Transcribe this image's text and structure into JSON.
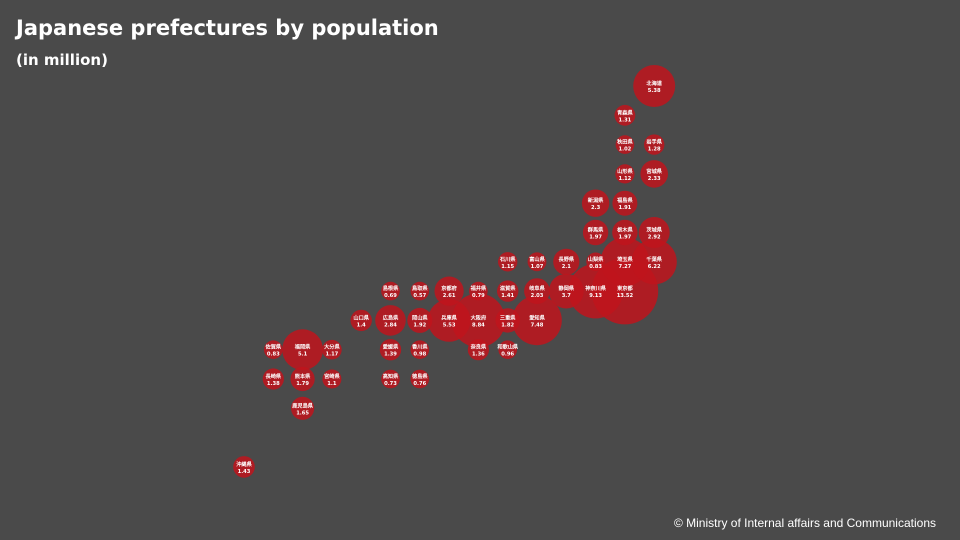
{
  "header": {
    "title": "Japanese prefectures by population",
    "subtitle": "(in million)"
  },
  "footer": {
    "credit": "© Ministry of Internal affairs and Communications"
  },
  "colors": {
    "background": "#4a4a4a",
    "bubble": "#c0141c",
    "text": "#ffffff"
  },
  "chart_data": {
    "type": "scatter",
    "encoding": "tile-grid bubble map; bubble area proportional to population",
    "unit": "million",
    "points": [
      {
        "name": "北海道",
        "value": 5.38,
        "col": 14,
        "row": 0
      },
      {
        "name": "青森県",
        "value": 1.31,
        "col": 13,
        "row": 1
      },
      {
        "name": "秋田県",
        "value": 1.02,
        "col": 13,
        "row": 2
      },
      {
        "name": "岩手県",
        "value": 1.28,
        "col": 14,
        "row": 2
      },
      {
        "name": "山形県",
        "value": 1.12,
        "col": 13,
        "row": 3
      },
      {
        "name": "宮城県",
        "value": 2.33,
        "col": 14,
        "row": 3
      },
      {
        "name": "新潟県",
        "value": 2.3,
        "col": 12,
        "row": 4
      },
      {
        "name": "福島県",
        "value": 1.91,
        "col": 13,
        "row": 4
      },
      {
        "name": "群馬県",
        "value": 1.97,
        "col": 12,
        "row": 5
      },
      {
        "name": "栃木県",
        "value": 1.97,
        "col": 13,
        "row": 5
      },
      {
        "name": "茨城県",
        "value": 2.92,
        "col": 14,
        "row": 5
      },
      {
        "name": "石川県",
        "value": 1.15,
        "col": 9,
        "row": 6
      },
      {
        "name": "富山県",
        "value": 1.07,
        "col": 10,
        "row": 6
      },
      {
        "name": "長野県",
        "value": 2.1,
        "col": 11,
        "row": 6
      },
      {
        "name": "山梨県",
        "value": 0.83,
        "col": 12,
        "row": 6
      },
      {
        "name": "埼玉県",
        "value": 7.27,
        "col": 13,
        "row": 6
      },
      {
        "name": "千葉県",
        "value": 6.22,
        "col": 14,
        "row": 6
      },
      {
        "name": "島根県",
        "value": 0.69,
        "col": 5,
        "row": 7
      },
      {
        "name": "鳥取県",
        "value": 0.57,
        "col": 6,
        "row": 7
      },
      {
        "name": "京都府",
        "value": 2.61,
        "col": 7,
        "row": 7
      },
      {
        "name": "福井県",
        "value": 0.79,
        "col": 8,
        "row": 7
      },
      {
        "name": "滋賀県",
        "value": 1.41,
        "col": 9,
        "row": 7
      },
      {
        "name": "岐阜県",
        "value": 2.03,
        "col": 10,
        "row": 7
      },
      {
        "name": "静岡県",
        "value": 3.7,
        "col": 11,
        "row": 7
      },
      {
        "name": "神奈川県",
        "value": 9.13,
        "col": 12,
        "row": 7
      },
      {
        "name": "東京都",
        "value": 13.52,
        "col": 13,
        "row": 7
      },
      {
        "name": "山口県",
        "value": 1.4,
        "col": 4,
        "row": 8
      },
      {
        "name": "広島県",
        "value": 2.84,
        "col": 5,
        "row": 8
      },
      {
        "name": "岡山県",
        "value": 1.92,
        "col": 6,
        "row": 8
      },
      {
        "name": "兵庫県",
        "value": 5.53,
        "col": 7,
        "row": 8
      },
      {
        "name": "大阪府",
        "value": 8.84,
        "col": 8,
        "row": 8
      },
      {
        "name": "三重県",
        "value": 1.82,
        "col": 9,
        "row": 8
      },
      {
        "name": "愛知県",
        "value": 7.48,
        "col": 10,
        "row": 8
      },
      {
        "name": "佐賀県",
        "value": 0.83,
        "col": 1,
        "row": 9
      },
      {
        "name": "福岡県",
        "value": 5.1,
        "col": 2,
        "row": 9
      },
      {
        "name": "大分県",
        "value": 1.17,
        "col": 3,
        "row": 9
      },
      {
        "name": "愛媛県",
        "value": 1.39,
        "col": 5,
        "row": 9
      },
      {
        "name": "香川県",
        "value": 0.98,
        "col": 6,
        "row": 9
      },
      {
        "name": "奈良県",
        "value": 1.36,
        "col": 8,
        "row": 9
      },
      {
        "name": "和歌山県",
        "value": 0.96,
        "col": 9,
        "row": 9
      },
      {
        "name": "長崎県",
        "value": 1.38,
        "col": 1,
        "row": 10
      },
      {
        "name": "熊本県",
        "value": 1.79,
        "col": 2,
        "row": 10
      },
      {
        "name": "宮崎県",
        "value": 1.1,
        "col": 3,
        "row": 10
      },
      {
        "name": "高知県",
        "value": 0.73,
        "col": 5,
        "row": 10
      },
      {
        "name": "徳島県",
        "value": 0.76,
        "col": 6,
        "row": 10
      },
      {
        "name": "鹿児島県",
        "value": 1.65,
        "col": 2,
        "row": 11
      },
      {
        "name": "沖縄県",
        "value": 1.43,
        "col": 0,
        "row": 13
      }
    ]
  }
}
